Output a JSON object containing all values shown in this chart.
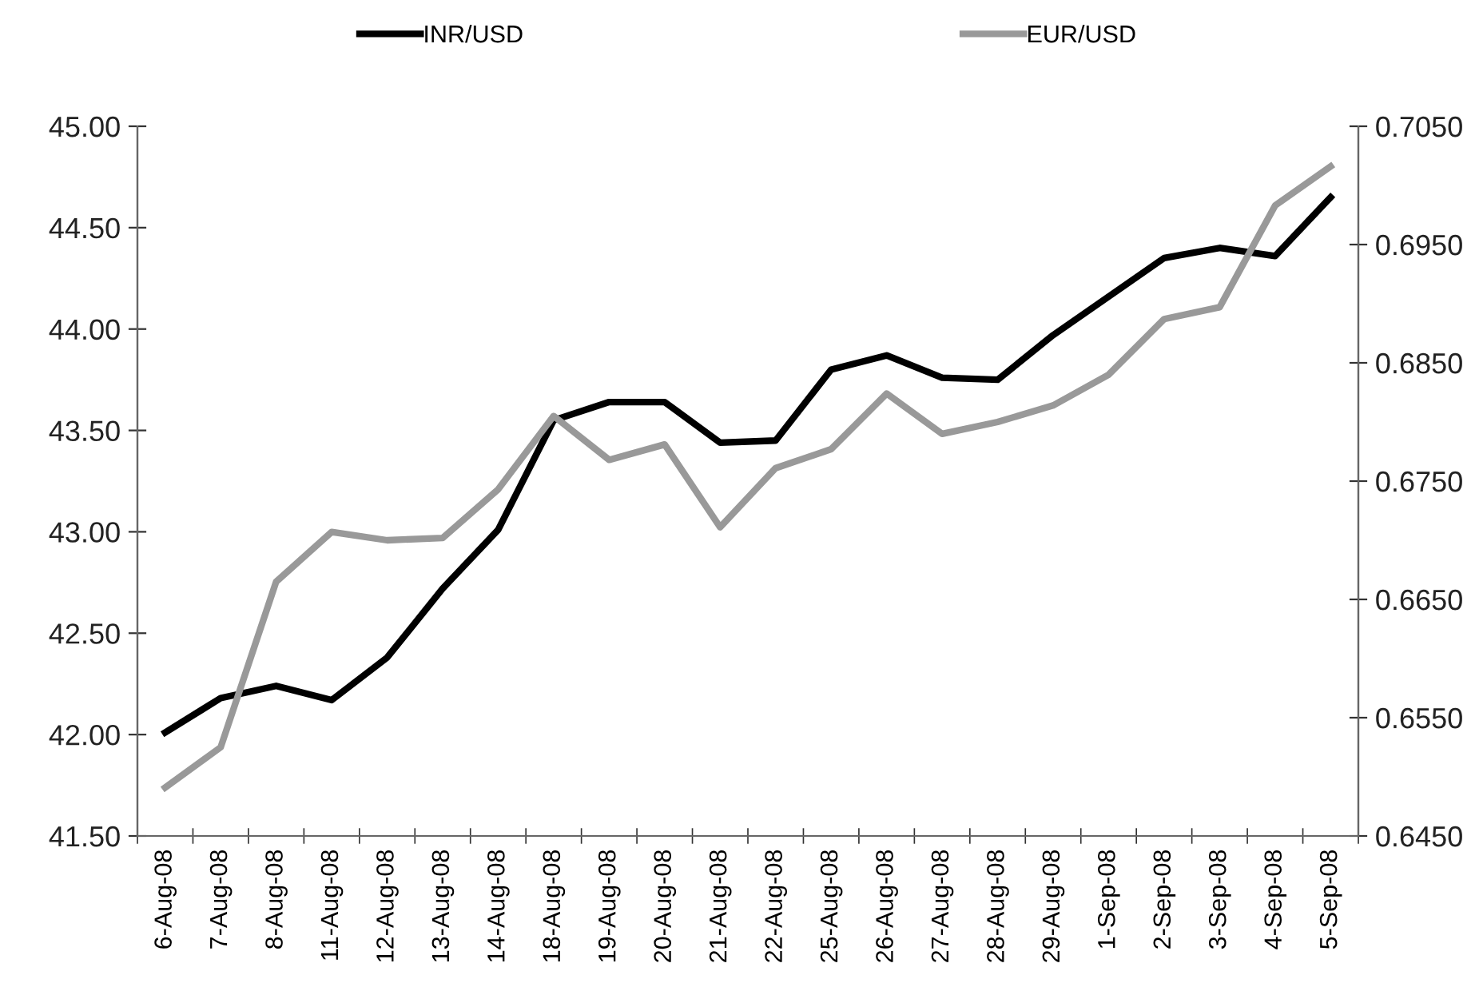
{
  "chart_data": {
    "type": "line",
    "categories": [
      "6-Aug-08",
      "7-Aug-08",
      "8-Aug-08",
      "11-Aug-08",
      "12-Aug-08",
      "13-Aug-08",
      "14-Aug-08",
      "18-Aug-08",
      "19-Aug-08",
      "20-Aug-08",
      "21-Aug-08",
      "22-Aug-08",
      "25-Aug-08",
      "26-Aug-08",
      "27-Aug-08",
      "28-Aug-08",
      "29-Aug-08",
      "1-Sep-08",
      "2-Sep-08",
      "3-Sep-08",
      "4-Sep-08",
      "5-Sep-08"
    ],
    "series": [
      {
        "name": "INR/USD",
        "color": "#000000",
        "values": [
          42.01,
          42.18,
          42.24,
          42.17,
          42.38,
          42.72,
          43.01,
          43.55,
          43.64,
          43.64,
          43.44,
          43.45,
          43.8,
          43.87,
          43.76,
          43.75,
          43.97,
          44.16,
          44.35,
          44.4,
          44.36,
          44.65
        ]
      },
      {
        "name": "EUR/USD",
        "color": "#999999",
        "axis": "y2",
        "values": [
          0.6491,
          0.6525,
          0.6665,
          0.6707,
          0.67,
          0.6702,
          0.6743,
          0.6805,
          0.6768,
          0.6781,
          0.6711,
          0.6761,
          0.6777,
          0.6824,
          0.679,
          0.68,
          0.6814,
          0.684,
          0.6887,
          0.6897,
          0.6983,
          0.7016
        ]
      }
    ],
    "ylim": [
      41.5,
      45.0
    ],
    "yticks": [
      {
        "value": 41.5,
        "label": "41.50"
      },
      {
        "value": 42.0,
        "label": "42.00"
      },
      {
        "value": 42.5,
        "label": "42.50"
      },
      {
        "value": 43.0,
        "label": "43.00"
      },
      {
        "value": 43.5,
        "label": "43.50"
      },
      {
        "value": 44.0,
        "label": "44.00"
      },
      {
        "value": 44.5,
        "label": "44.50"
      },
      {
        "value": 45.0,
        "label": "45.00"
      }
    ],
    "y2lim": [
      0.645,
      0.705
    ],
    "y2ticks": [
      {
        "value": 0.645,
        "label": "0.6450"
      },
      {
        "value": 0.655,
        "label": "0.6550"
      },
      {
        "value": 0.665,
        "label": "0.6650"
      },
      {
        "value": 0.675,
        "label": "0.6750"
      },
      {
        "value": 0.685,
        "label": "0.6850"
      },
      {
        "value": 0.695,
        "label": "0.6950"
      },
      {
        "value": 0.705,
        "label": "0.7050"
      }
    ],
    "legend": "top",
    "grid": false,
    "marker": "none",
    "line_style": "solid"
  }
}
